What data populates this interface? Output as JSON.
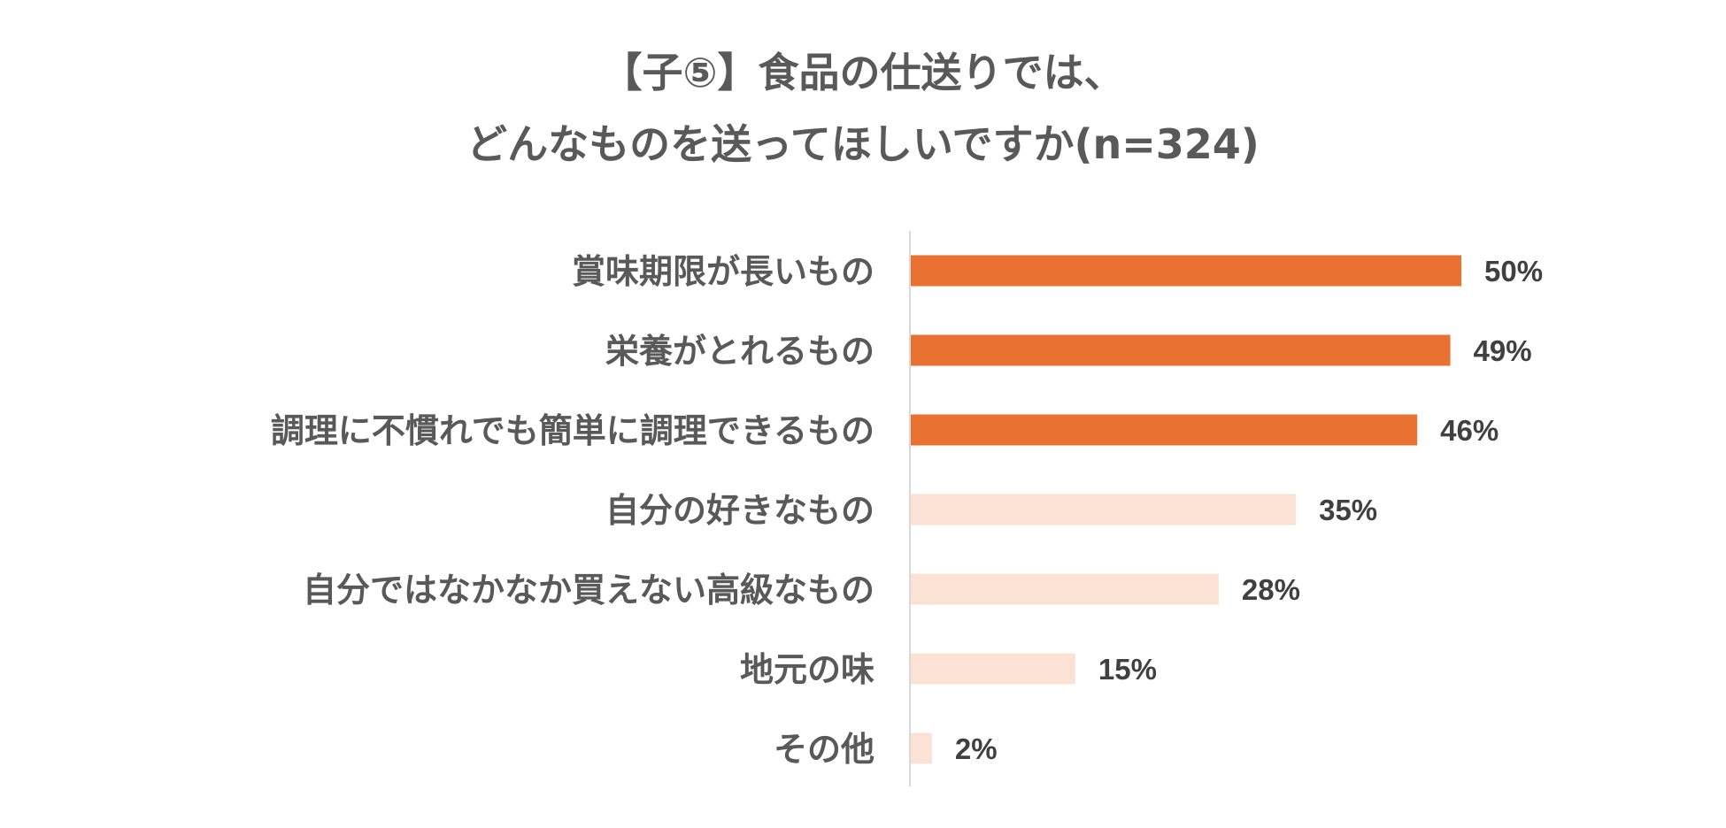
{
  "chart_data": {
    "type": "bar",
    "orientation": "horizontal",
    "title_lines": [
      "【子⑤】食品の仕送りでは、",
      "どんなものを送ってほしいですか(n=324)"
    ],
    "categories": [
      "賞味期限が長いもの",
      "栄養がとれるもの",
      "調理に不慣れでも簡単に調理できるもの",
      "自分の好きなもの",
      "自分ではなかなか買えない高級なもの",
      "地元の味",
      "その他"
    ],
    "values": [
      50,
      49,
      46,
      35,
      28,
      15,
      2
    ],
    "data_labels": [
      "50%",
      "49%",
      "46%",
      "35%",
      "28%",
      "15%",
      "2%"
    ],
    "unit": "%",
    "xlim": [
      0,
      50
    ],
    "grid": false,
    "highlight_colors": [
      "#E97132",
      "#E97132",
      "#E97132",
      "#FBE2D5",
      "#FBE2D5",
      "#FBE2D5",
      "#FBE2D5"
    ],
    "colors": {
      "highlight": "#E97132",
      "normal": "#FBE2D5",
      "text": "#595959",
      "value_text": "#404040",
      "axis": "#D9D9D9"
    }
  }
}
